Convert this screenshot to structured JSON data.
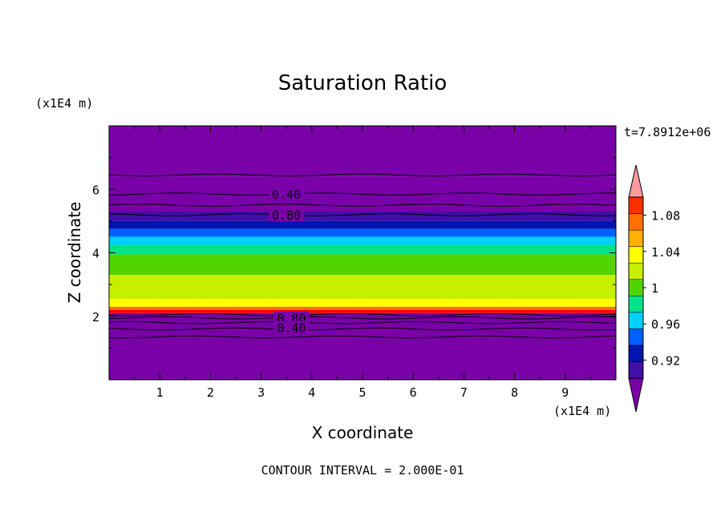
{
  "chart_data": {
    "type": "heatmap",
    "title": "Saturation Ratio",
    "xlabel": "X coordinate",
    "ylabel": "Z coordinate",
    "x_unit": "(x1E4 m)",
    "y_unit": "(x1E4 m)",
    "time_label": "t=7.8912e+06",
    "footer": "CONTOUR INTERVAL = 2.000E-01",
    "xlim": [
      0,
      10
    ],
    "ylim": [
      0,
      8
    ],
    "x_ticks": [
      1,
      2,
      3,
      4,
      5,
      6,
      7,
      8,
      9
    ],
    "y_ticks": [
      2,
      4,
      6
    ],
    "colorbar": {
      "colors": [
        "#7a00a8",
        "#3f0fa8",
        "#0015b0",
        "#0060ff",
        "#00cfff",
        "#00e38a",
        "#52d400",
        "#c6f000",
        "#ffff00",
        "#ffb000",
        "#ff7000",
        "#ff3000",
        "#ff0000",
        "#ff9aa0"
      ],
      "levels": [
        0.9,
        0.91,
        0.92,
        0.94,
        0.96,
        0.98,
        1.0,
        1.02,
        1.04,
        1.06,
        1.08,
        1.1
      ],
      "tick_labels": [
        "0.92",
        "0.96",
        "1",
        "1.04",
        "1.08"
      ]
    },
    "layers": [
      {
        "z": [
          6.4,
          8.0
        ],
        "color": "#7a00a8"
      },
      {
        "z": [
          5.3,
          6.4
        ],
        "color": "#7a00a8"
      },
      {
        "z": [
          5.0,
          5.3
        ],
        "color": "#3f0fa8"
      },
      {
        "z": [
          4.75,
          5.0
        ],
        "color": "#0015b0"
      },
      {
        "z": [
          4.5,
          4.75
        ],
        "color": "#0060ff"
      },
      {
        "z": [
          4.25,
          4.5
        ],
        "color": "#00cfff"
      },
      {
        "z": [
          3.95,
          4.25
        ],
        "color": "#00e38a"
      },
      {
        "z": [
          3.3,
          3.95
        ],
        "color": "#52d400"
      },
      {
        "z": [
          2.55,
          3.3
        ],
        "color": "#c6f000"
      },
      {
        "z": [
          2.3,
          2.55
        ],
        "color": "#ffff00"
      },
      {
        "z": [
          2.2,
          2.3
        ],
        "color": "#ff7000"
      },
      {
        "z": [
          2.1,
          2.2
        ],
        "color": "#ff0000"
      },
      {
        "z": [
          0.0,
          2.1
        ],
        "color": "#7a00a8"
      }
    ],
    "contour_lines_z": [
      6.45,
      5.85,
      5.5,
      5.2,
      2.05,
      1.95,
      1.8,
      1.6,
      1.35
    ],
    "contour_labels": [
      {
        "text": "0.40",
        "x": 3.5,
        "z": 5.85
      },
      {
        "text": "0.80",
        "x": 3.5,
        "z": 5.2
      },
      {
        "text": "0.80",
        "x": 3.6,
        "z": 1.95
      },
      {
        "text": "0.40",
        "x": 3.6,
        "z": 1.65
      }
    ]
  }
}
